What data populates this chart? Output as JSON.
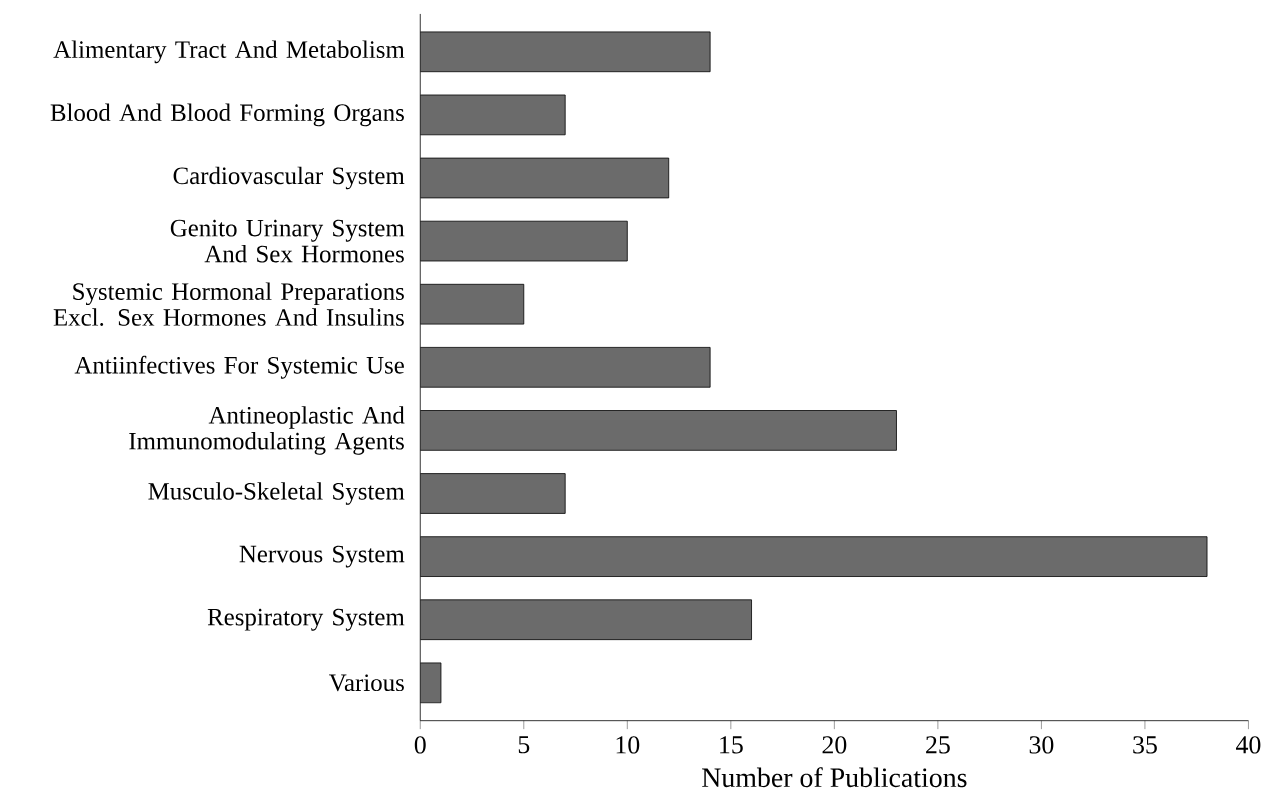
{
  "chart_data": {
    "type": "bar",
    "orientation": "horizontal",
    "categories": [
      "Alimentary Tract And Metabolism",
      "Blood And Blood Forming Organs",
      "Cardiovascular System",
      "Genito Urinary System And Sex Hormones",
      "Systemic Hormonal Preparations Excl. Sex Hormones And Insulins",
      "Antiinfectives For Systemic Use",
      "Antineoplastic And Immunomodulating Agents",
      "Musculo-Skeletal System",
      "Nervous System",
      "Respiratory System",
      "Various"
    ],
    "values": [
      14,
      7,
      12,
      10,
      5,
      14,
      23,
      7,
      38,
      16,
      1
    ],
    "color": "#6b6b6b",
    "xlim": [
      0,
      40
    ],
    "xticks": [
      0,
      5,
      10,
      15,
      20,
      25,
      30,
      35,
      40
    ],
    "xlabel": "Number of Publications"
  }
}
